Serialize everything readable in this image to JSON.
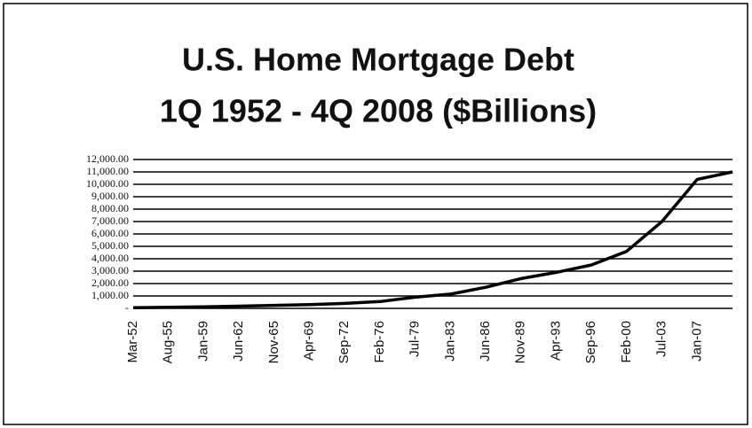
{
  "chart_data": {
    "type": "line",
    "title": "U.S. Home Mortgage Debt",
    "subtitle": "1Q 1952 - 4Q 2008 ($Billions)",
    "categories": [
      "Mar-52",
      "Aug-55",
      "Jan-59",
      "Jun-62",
      "Nov-65",
      "Apr-69",
      "Sep-72",
      "Feb-76",
      "Jul-79",
      "Jan-83",
      "Jun-86",
      "Nov-89",
      "Apr-93",
      "Sep-96",
      "Feb-00",
      "Jul-03",
      "Jan-07",
      null
    ],
    "series": [
      {
        "name": "Home Mortgage Debt",
        "color": "#000000",
        "values": [
          60,
          90,
          130,
          180,
          240,
          300,
          400,
          550,
          900,
          1150,
          1700,
          2400,
          2900,
          3500,
          4600,
          7000,
          10400,
          11000
        ]
      }
    ],
    "ylim": [
      0,
      12000
    ],
    "yticks": [
      {
        "value": 0,
        "label": "-"
      },
      {
        "value": 1000,
        "label": "1,000.00"
      },
      {
        "value": 2000,
        "label": "2,000.00"
      },
      {
        "value": 3000,
        "label": "3,000.00"
      },
      {
        "value": 4000,
        "label": "4,000.00"
      },
      {
        "value": 5000,
        "label": "5,000.00"
      },
      {
        "value": 6000,
        "label": "6,000.00"
      },
      {
        "value": 7000,
        "label": "7,000.00"
      },
      {
        "value": 8000,
        "label": "8,000.00"
      },
      {
        "value": 9000,
        "label": "9,000.00"
      },
      {
        "value": 10000,
        "label": "10,000.00"
      },
      {
        "value": 11000,
        "label": "11,000.00"
      },
      {
        "value": 12000,
        "label": "12,000.00"
      }
    ],
    "grid": true
  }
}
